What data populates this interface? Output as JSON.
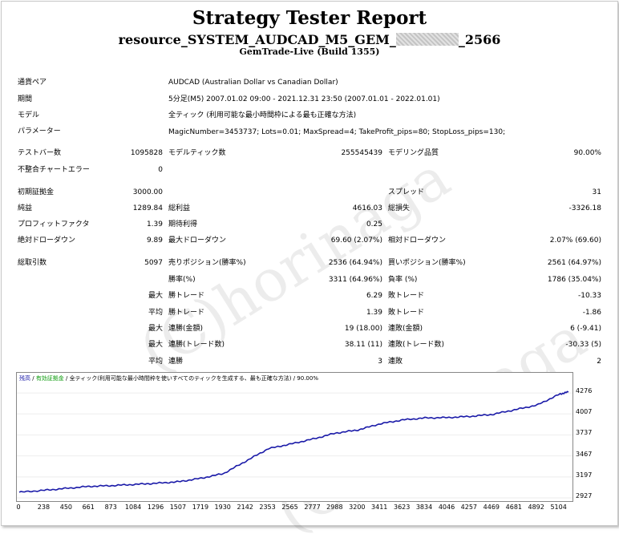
{
  "report": {
    "title": "Strategy Tester Report",
    "subtitle_prefix": "resource_SYSTEM_AUDCAD_M5_GEM_",
    "subtitle_suffix": "_2566",
    "build": "GemTrade-Live (Build 1355)"
  },
  "watermark": "(C)horinaga",
  "info_rows": [
    {
      "label": "通貨ペア",
      "value": "AUDCAD (Australian Dollar vs Canadian Dollar)"
    },
    {
      "label": "期間",
      "value": "5分足(M5)  2007.01.02 09:00 - 2021.12.31 23:50 (2007.01.01 - 2022.01.01)"
    },
    {
      "label": "モデル",
      "value": "全ティック (利用可能な最小時間枠による最も正確な方法)"
    },
    {
      "label": "パラメーター",
      "value": "MagicNumber=3453737; Lots=0.01; MaxSpread=4; TakeProfit_pips=80; StopLoss_pips=130;"
    }
  ],
  "stats": {
    "bars_label": "テストバー数",
    "bars_value": "1095828",
    "ticks_label": "モデルティック数",
    "ticks_value": "255545439",
    "quality_label": "モデリング品質",
    "quality_value": "90.00%",
    "mismatch_label": "不整合チャートエラー",
    "mismatch_value": "0",
    "deposit_label": "初期証拠金",
    "deposit_value": "3000.00",
    "spread_label": "スプレッド",
    "spread_value": "31",
    "net_label": "純益",
    "net_value": "1289.84",
    "gross_profit_label": "総利益",
    "gross_profit_value": "4616.03",
    "gross_loss_label": "総損失",
    "gross_loss_value": "-3326.18",
    "pf_label": "プロフィットファクタ",
    "pf_value": "1.39",
    "expected_label": "期待利得",
    "expected_value": "0.25",
    "abs_dd_label": "絶対ドローダウン",
    "abs_dd_value": "9.89",
    "max_dd_label": "最大ドローダウン",
    "max_dd_value": "69.60 (2.07%)",
    "rel_dd_label": "相対ドローダウン",
    "rel_dd_value": "2.07% (69.60)",
    "trades_label": "総取引数",
    "trades_value": "5097",
    "short_label": "売りポジション(勝率%)",
    "short_value": "2536 (64.94%)",
    "long_label": "買いポジション(勝率%)",
    "long_value": "2561 (64.97%)",
    "win_label": "勝率(%)",
    "win_value": "3311 (64.96%)",
    "loss_label": "負率 (%)",
    "loss_value": "1786 (35.04%)",
    "max_word": "最大",
    "avg_word": "平均",
    "largest_win_label": "勝トレード",
    "largest_win_value": "6.29",
    "largest_loss_label": "敗トレード",
    "largest_loss_value": "-10.33",
    "avg_win_label": "勝トレード",
    "avg_win_value": "1.39",
    "avg_loss_label": "敗トレード",
    "avg_loss_value": "-1.86",
    "max_consec_win_label": "連勝(金額)",
    "max_consec_win_value": "19 (18.00)",
    "max_consec_loss_label": "連敗(金額)",
    "max_consec_loss_value": "6 (-9.41)",
    "max_consec_profit_label": "連勝(トレード数)",
    "max_consec_profit_value": "38.11 (11)",
    "max_consec_lossamt_label": "連敗(トレード数)",
    "max_consec_lossamt_value": "-30.33 (5)",
    "avg_consec_win_label": "連勝",
    "avg_consec_win_value": "3",
    "avg_consec_loss_label": "連敗",
    "avg_consec_loss_value": "2"
  },
  "chart_legend": {
    "balance": "残高",
    "sep1": " / ",
    "equity": "有効証拠金",
    "sep2": " / ",
    "model": "全ティック(利用可能な最小時間枠を使いすべてのティックを生成する、最も正確な方法)",
    "sep3": " / ",
    "quality": "90.00%",
    "balance_color": "#1a1aa8",
    "equity_color": "#0a9a0a"
  },
  "chart_data": {
    "type": "line",
    "x": [
      0,
      238,
      450,
      661,
      873,
      1084,
      1296,
      1507,
      1719,
      1930,
      2142,
      2353,
      2565,
      2777,
      2988,
      3200,
      3411,
      3623,
      3834,
      4046,
      4257,
      4469,
      4681,
      4892,
      5104,
      5190
    ],
    "series": [
      {
        "name": "残高",
        "color": "#1a1aa8",
        "values": [
          3000,
          3025,
          3050,
          3075,
          3085,
          3100,
          3115,
          3135,
          3180,
          3240,
          3400,
          3560,
          3620,
          3685,
          3760,
          3800,
          3880,
          3930,
          3955,
          3960,
          3975,
          4000,
          4060,
          4120,
          4260,
          4290
        ]
      }
    ],
    "xticks": [
      "0",
      "238",
      "450",
      "661",
      "873",
      "1084",
      "1296",
      "1507",
      "1719",
      "1930",
      "2142",
      "2353",
      "2565",
      "2777",
      "2988",
      "3200",
      "3411",
      "3623",
      "3834",
      "4046",
      "4257",
      "4469",
      "4681",
      "4892",
      "5104"
    ],
    "yticks": [
      "4276",
      "4007",
      "3737",
      "3467",
      "3197",
      "2927"
    ],
    "ylim": [
      2927,
      4350
    ]
  }
}
